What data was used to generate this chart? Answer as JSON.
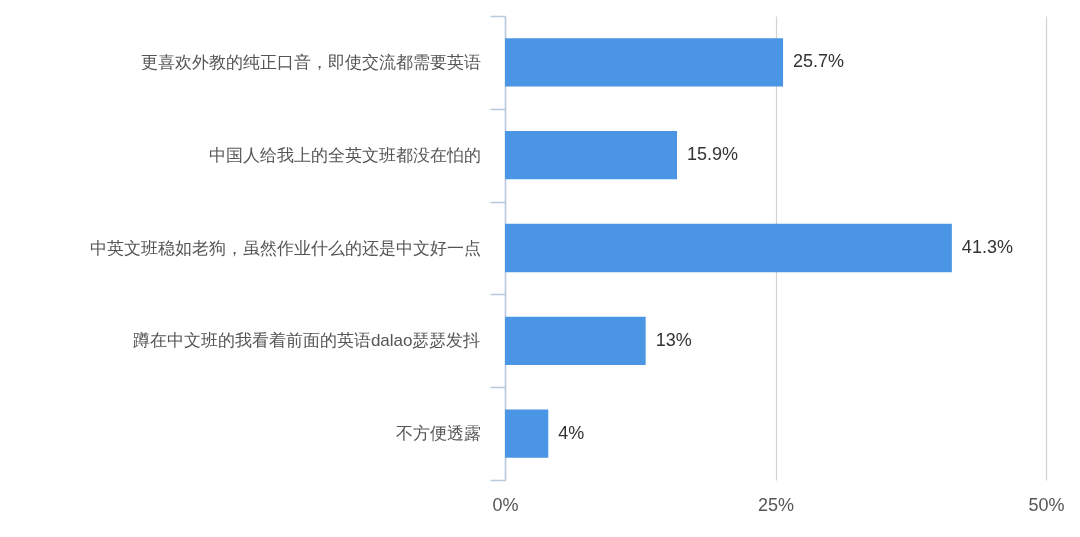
{
  "chart_data": {
    "type": "bar",
    "orientation": "horizontal",
    "categories": [
      "更喜欢外教的纯正口音，即使交流都需要英语",
      "中国人给我上的全英文班都没在怕的",
      "中英文班稳如老狗，虽然作业什么的还是中文好一点",
      "蹲在中文班的我看着前面的英语dalao瑟瑟发抖",
      "不方便透露"
    ],
    "values": [
      25.7,
      15.9,
      41.3,
      13,
      4
    ],
    "value_labels": [
      "25.7%",
      "15.9%",
      "41.3%",
      "13%",
      "4%"
    ],
    "color": "#4a96e4",
    "xlim": [
      0,
      50
    ],
    "xticks": [
      {
        "value": 0,
        "label": "0%"
      },
      {
        "value": 25,
        "label": "25%"
      },
      {
        "value": 50,
        "label": "50%"
      }
    ],
    "grid": "x"
  }
}
